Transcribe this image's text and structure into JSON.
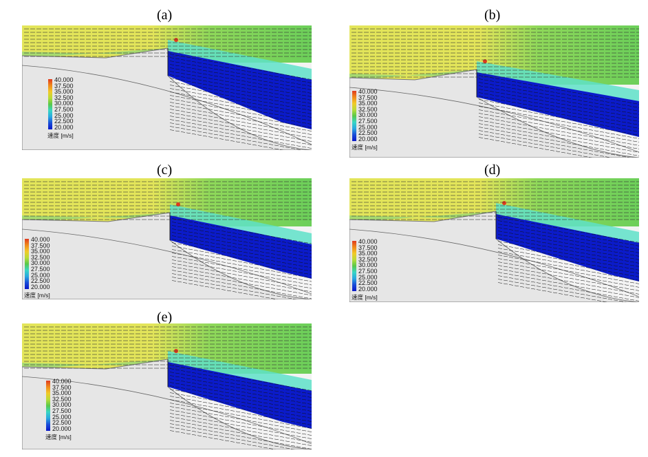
{
  "panels": [
    {
      "id": "a",
      "label": "(a)"
    },
    {
      "id": "b",
      "label": "(b)"
    },
    {
      "id": "c",
      "label": "(c)"
    },
    {
      "id": "d",
      "label": "(d)"
    },
    {
      "id": "e",
      "label": "(e)"
    }
  ],
  "legend": {
    "values": [
      "40.000",
      "37.500",
      "35.000",
      "32.500",
      "30.000",
      "27.500",
      "25.000",
      "22.500",
      "20.000"
    ],
    "unit": "速度 [m/s]",
    "colors": [
      "#e03a1e",
      "#f08a1c",
      "#f2c928",
      "#b9dc38",
      "#58c84a",
      "#38d6c4",
      "#2aa8e0",
      "#1a4cd8",
      "#0a18c8"
    ]
  },
  "colors": {
    "flow_high": "#e3e55a",
    "flow_mid": "#8fd85a",
    "flow_green": "#6ccf5a",
    "flow_cyan": "#5ee0c8",
    "flow_blue": "#0b1bc9",
    "geometry": "#e6e6e6"
  }
}
